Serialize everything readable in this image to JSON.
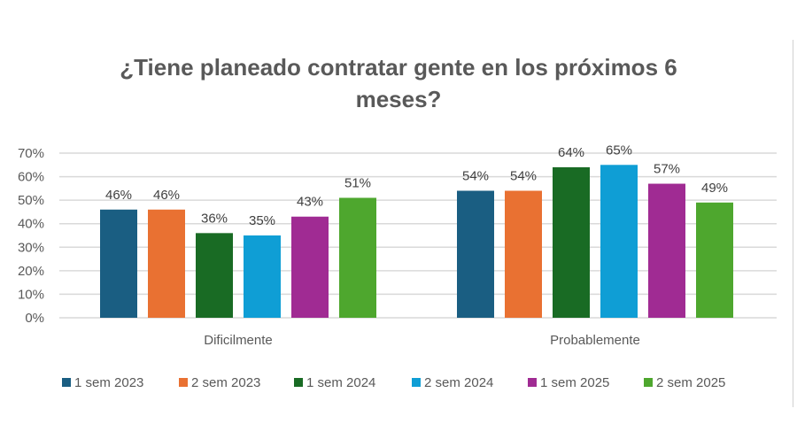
{
  "chart_data": {
    "type": "bar",
    "title": "¿Tiene planeado contratar gente en los próximos 6 meses?",
    "categories": [
      "Dificilmente",
      "Probablemente"
    ],
    "series": [
      {
        "name": "1 sem 2023",
        "values": [
          46,
          54
        ],
        "color": "#1a5e82"
      },
      {
        "name": "2 sem 2023",
        "values": [
          46,
          54
        ],
        "color": "#e97132"
      },
      {
        "name": "1 sem 2024",
        "values": [
          36,
          64
        ],
        "color": "#196b24"
      },
      {
        "name": "2 sem 2024",
        "values": [
          35,
          65
        ],
        "color": "#0f9ed5"
      },
      {
        "name": "1 sem 2025",
        "values": [
          43,
          57
        ],
        "color": "#a02b93"
      },
      {
        "name": "2 sem 2025",
        "values": [
          51,
          49
        ],
        "color": "#4ea72e"
      }
    ],
    "ylim": [
      0,
      70
    ],
    "yticks": [
      "0%",
      "10%",
      "20%",
      "30%",
      "40%",
      "50%",
      "60%",
      "70%"
    ],
    "grid": true,
    "legend": "bottom",
    "value_suffix": "%"
  }
}
